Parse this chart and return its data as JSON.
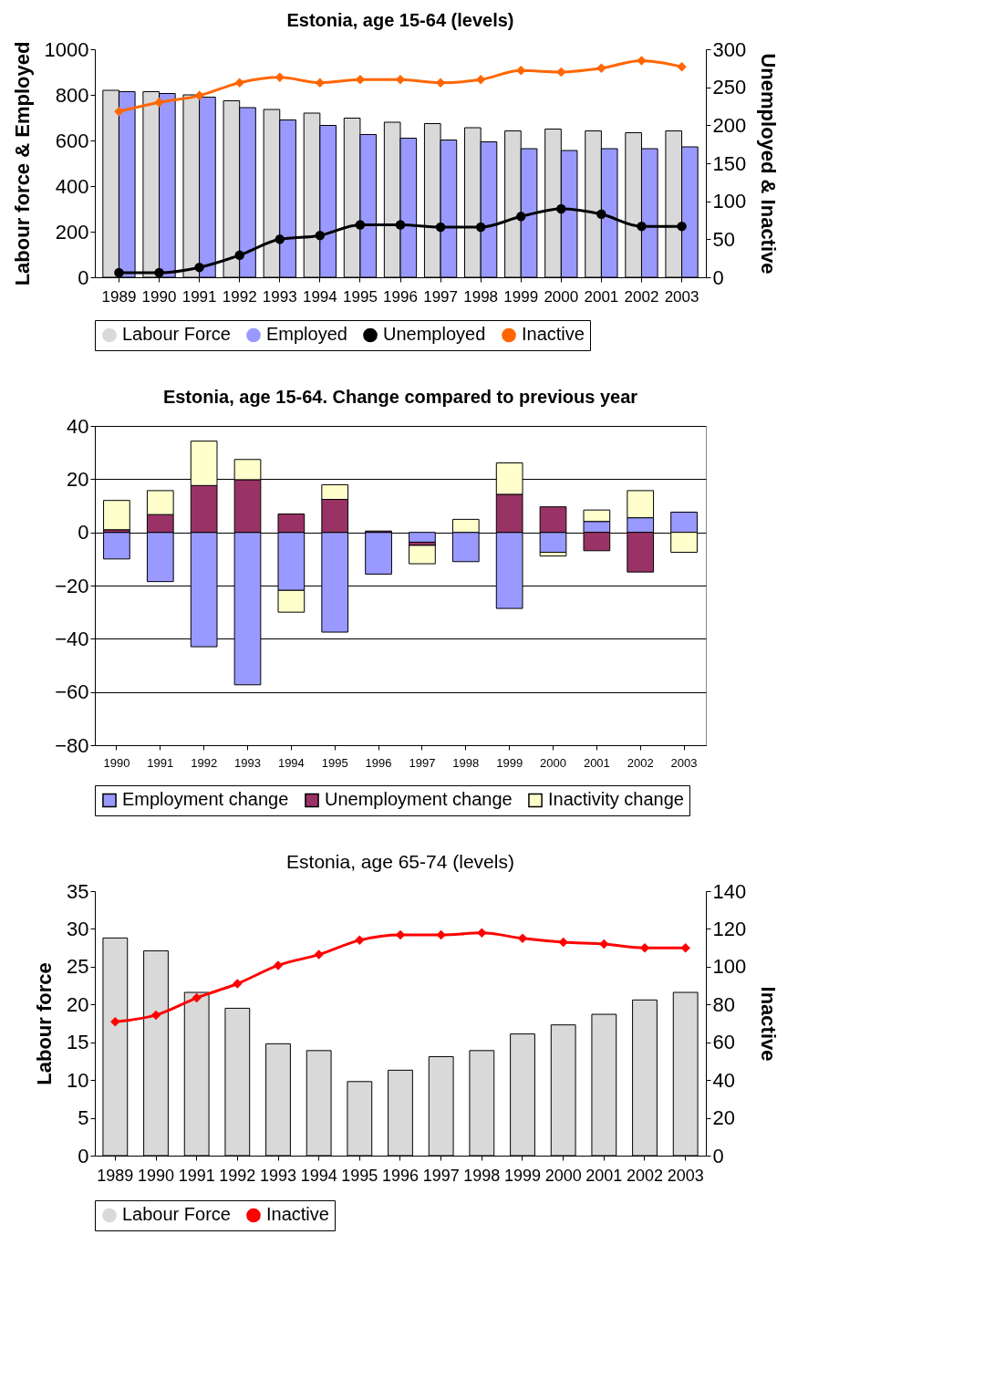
{
  "chart_data": [
    {
      "type": "bar",
      "title": "Estonia, age 15-64 (levels)",
      "ylabel": "Labour force & Employed",
      "y2label": "Unemployed & Inactive",
      "categories": [
        "1989",
        "1990",
        "1991",
        "1992",
        "1993",
        "1994",
        "1995",
        "1996",
        "1997",
        "1998",
        "1999",
        "2000",
        "2001",
        "2002",
        "2003"
      ],
      "series": [
        {
          "name": "Labour Force",
          "color": "#d9d9d9",
          "values": [
            820,
            814,
            800,
            774,
            736,
            720,
            698,
            680,
            674,
            656,
            642,
            650,
            642,
            634,
            642
          ]
        },
        {
          "name": "Employed",
          "color": "#9999ff",
          "values": [
            814,
            806,
            790,
            744,
            690,
            666,
            626,
            610,
            602,
            594,
            564,
            556,
            564,
            564,
            572
          ]
        },
        {
          "name": "Unemployed",
          "type": "line",
          "axis": "y2",
          "color": "#000000",
          "marker": "circle",
          "values": [
            6,
            6,
            13,
            29,
            50,
            55,
            69,
            69,
            66,
            66,
            80,
            90,
            83,
            67,
            67
          ]
        },
        {
          "name": "Inactive",
          "type": "line",
          "axis": "y2",
          "color": "#ff6600",
          "marker": "diamond",
          "values": [
            218,
            230,
            239,
            256,
            263,
            256,
            260,
            260,
            256,
            260,
            272,
            270,
            275,
            285,
            277
          ]
        }
      ],
      "ylim": [
        0,
        1000
      ],
      "yticks": [
        0,
        200,
        400,
        600,
        800,
        1000
      ],
      "y2lim": [
        0,
        300
      ],
      "y2ticks": [
        0,
        50,
        100,
        150,
        200,
        250,
        300
      ],
      "legend": "bottom"
    },
    {
      "type": "bar",
      "title": "Estonia, age 15-64. Change compared to previous year",
      "stacked": true,
      "categories": [
        "1990",
        "1991",
        "1992",
        "1993",
        "1994",
        "1995",
        "1996",
        "1997",
        "1998",
        "1999",
        "2000",
        "2001",
        "2002",
        "2003"
      ],
      "series": [
        {
          "name": "Employment change",
          "color": "#9999ff",
          "values": [
            -10,
            -18.5,
            -43,
            -57.3,
            -21.8,
            -37.5,
            -15.7,
            -3.7,
            -11,
            -28.6,
            -7.5,
            4.1,
            5.5,
            7.6
          ]
        },
        {
          "name": "Unemployment change",
          "color": "#993366",
          "values": [
            1,
            6.7,
            17.6,
            19.8,
            6.9,
            12.4,
            0.5,
            -1.2,
            null,
            14.3,
            9.6,
            -6.9,
            -14.9,
            null
          ]
        },
        {
          "name": "Inactivity change",
          "color": "#ffffcc",
          "values": [
            11,
            9,
            16.7,
            7.6,
            -8.2,
            5.5,
            null,
            -6.9,
            4.9,
            11.8,
            -1.4,
            4.3,
            10.2,
            -7.5
          ]
        }
      ],
      "ylim": [
        -80,
        40
      ],
      "yticks": [
        -80,
        -60,
        -40,
        -20,
        0,
        20,
        40
      ],
      "grid": "y",
      "legend": "bottom"
    },
    {
      "type": "bar",
      "title": "Estonia, age 65-74 (levels)",
      "ylabel": "Labour force",
      "y2label": "Inactive",
      "categories": [
        "1989",
        "1990",
        "1991",
        "1992",
        "1993",
        "1994",
        "1995",
        "1996",
        "1997",
        "1998",
        "1999",
        "2000",
        "2001",
        "2002",
        "2003"
      ],
      "series": [
        {
          "name": "Labour Force",
          "color": "#d9d9d9",
          "values": [
            28.8,
            27.1,
            21.6,
            19.5,
            14.8,
            13.9,
            9.8,
            11.3,
            13.1,
            13.9,
            16.1,
            17.3,
            18.7,
            20.6,
            21.6
          ]
        },
        {
          "name": "Inactive",
          "type": "line",
          "axis": "y2",
          "color": "#ff0000",
          "marker": "diamond",
          "values": [
            70.8,
            74.4,
            83.5,
            91,
            100.7,
            106.4,
            114,
            116.8,
            116.8,
            117.9,
            115,
            113,
            112,
            110,
            110
          ]
        }
      ],
      "ylim": [
        0,
        35
      ],
      "yticks": [
        0,
        5,
        10,
        15,
        20,
        25,
        30,
        35
      ],
      "y2lim": [
        0,
        140
      ],
      "y2ticks": [
        0,
        20,
        40,
        60,
        80,
        100,
        120,
        140
      ],
      "legend": "bottom"
    }
  ]
}
